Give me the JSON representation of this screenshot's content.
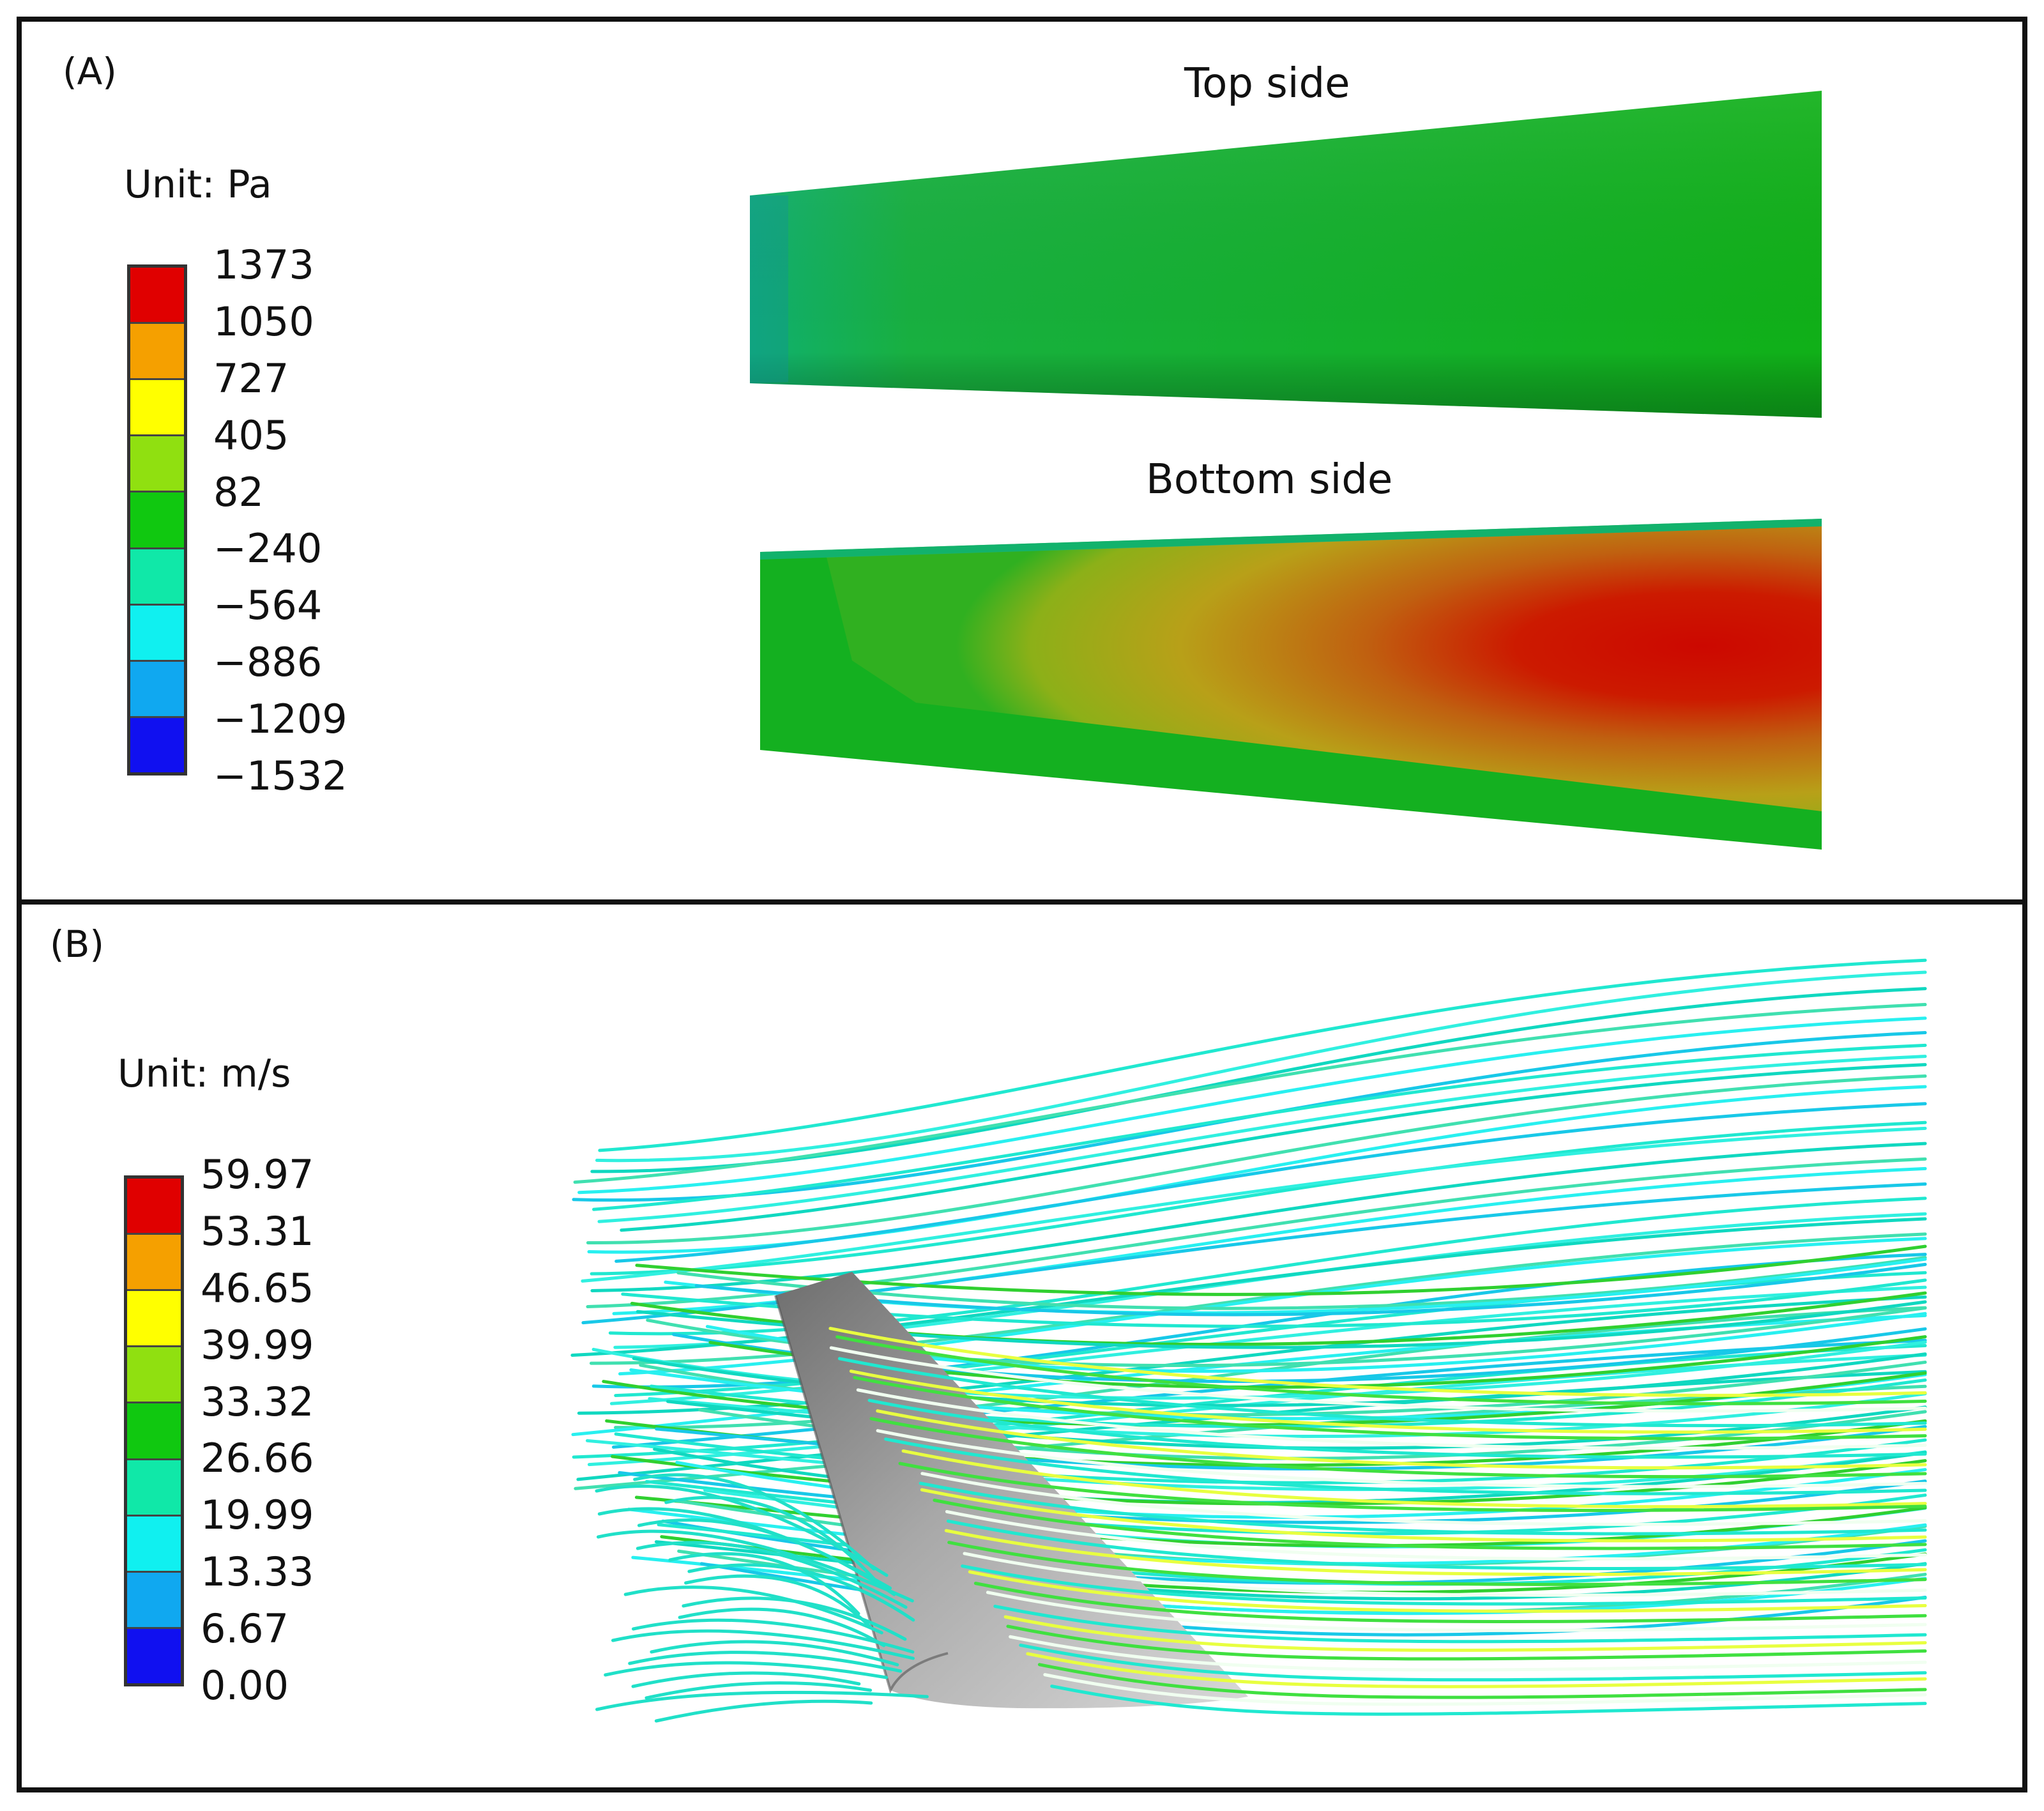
{
  "panel_a": {
    "label": "(A)",
    "unit": "Unit: Pa",
    "legend_ticks": [
      "1373",
      "1050",
      "727",
      "405",
      "82",
      "−240",
      "−564",
      "−886",
      "−1209",
      "−1532"
    ],
    "legend_colors": [
      "#e00000",
      "#f5a000",
      "#ffff00",
      "#90e010",
      "#10c810",
      "#10e8a8",
      "#10f0f0",
      "#10a8f0",
      "#1010f0"
    ],
    "top_title": "Top side",
    "bottom_title": "Bottom side"
  },
  "panel_b": {
    "label": "(B)",
    "unit": "Unit: m/s",
    "legend_ticks": [
      "59.97",
      "53.31",
      "46.65",
      "39.99",
      "33.32",
      "26.66",
      "19.99",
      "13.33",
      "6.67",
      "0.00"
    ],
    "legend_colors": [
      "#e00000",
      "#f5a000",
      "#ffff00",
      "#90e010",
      "#10c810",
      "#10e8a8",
      "#10f0f0",
      "#10a8f0",
      "#1010f0"
    ]
  },
  "colors": {
    "top_surface": "#14b020",
    "bottom_high": "#cc0a00",
    "bottom_mid": "#b8a010",
    "wing_gray": "#9a9a9a",
    "streamline": "#20e0c8"
  }
}
